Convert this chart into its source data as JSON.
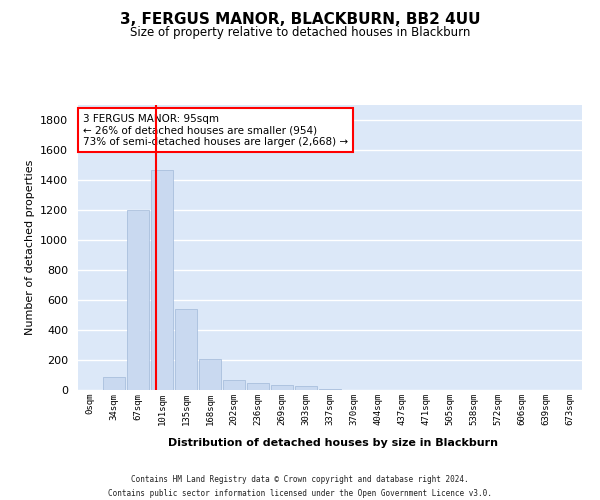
{
  "title": "3, FERGUS MANOR, BLACKBURN, BB2 4UU",
  "subtitle": "Size of property relative to detached houses in Blackburn",
  "xlabel": "Distribution of detached houses by size in Blackburn",
  "ylabel": "Number of detached properties",
  "bar_color": "#c9d9f0",
  "bar_edgecolor": "#a0b8d8",
  "categories": [
    "0sqm",
    "34sqm",
    "67sqm",
    "101sqm",
    "135sqm",
    "168sqm",
    "202sqm",
    "236sqm",
    "269sqm",
    "303sqm",
    "337sqm",
    "370sqm",
    "404sqm",
    "437sqm",
    "471sqm",
    "505sqm",
    "538sqm",
    "572sqm",
    "606sqm",
    "639sqm",
    "673sqm"
  ],
  "values": [
    0,
    90,
    1200,
    1470,
    540,
    205,
    65,
    45,
    35,
    28,
    10,
    0,
    0,
    0,
    0,
    0,
    0,
    0,
    0,
    0,
    0
  ],
  "ylim": [
    0,
    1900
  ],
  "yticks": [
    0,
    200,
    400,
    600,
    800,
    1000,
    1200,
    1400,
    1600,
    1800
  ],
  "property_line_x": 2.75,
  "annotation_text": "3 FERGUS MANOR: 95sqm\n← 26% of detached houses are smaller (954)\n73% of semi-detached houses are larger (2,668) →",
  "annotation_box_color": "white",
  "annotation_box_edgecolor": "red",
  "vline_color": "red",
  "footer_line1": "Contains HM Land Registry data © Crown copyright and database right 2024.",
  "footer_line2": "Contains public sector information licensed under the Open Government Licence v3.0.",
  "background_color": "#dce8f8",
  "grid_color": "#ffffff"
}
